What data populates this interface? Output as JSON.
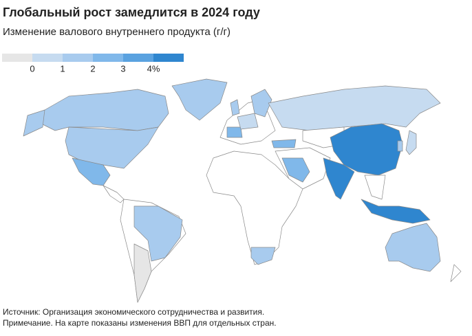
{
  "header": {
    "title": "Глобальный рост замедлится в 2024 году",
    "subtitle": "Изменение валового внутреннего продукта (г/г)"
  },
  "legend": {
    "colors": [
      "#e6e6e6",
      "#c6dbf0",
      "#a8cbee",
      "#80b8ea",
      "#5aa2e0",
      "#2f86cf"
    ],
    "ticks": [
      0,
      1,
      2,
      3,
      {
        "value": 4,
        "label": "4%"
      }
    ]
  },
  "footer": {
    "source": "Источник: Организация экономического сотрудничества и развития.",
    "note": "Примечание. На карте показаны изменения ВВП для отдельных стран."
  }
}
